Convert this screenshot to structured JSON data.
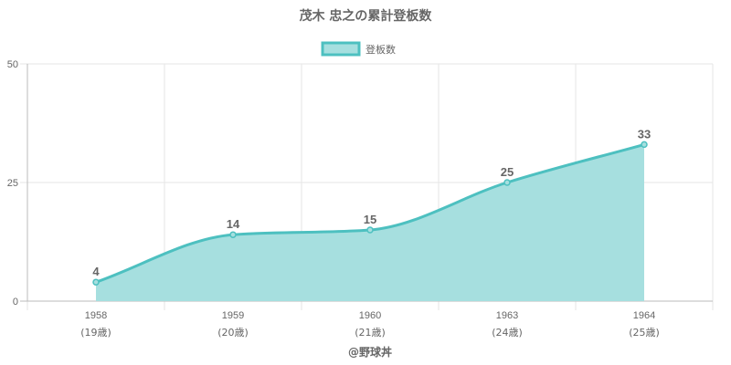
{
  "chart_data": {
    "type": "area",
    "title": "茂木 忠之の累計登板数",
    "categories": [
      "1958",
      "1959",
      "1960",
      "1963",
      "1964"
    ],
    "category_sublabels": [
      "(19歳)",
      "(20歳)",
      "(21歳)",
      "(24歳)",
      "(25歳)"
    ],
    "series": [
      {
        "name": "登板数",
        "values": [
          4,
          14,
          15,
          25,
          33
        ]
      }
    ],
    "ylim": [
      0,
      50
    ],
    "yticks": [
      0,
      25,
      50
    ],
    "grid": true,
    "legend_position": "top",
    "colors": {
      "line": "#4dc0c0",
      "fill": "#a6dfdf",
      "grid": "#e6e6e6",
      "axis": "#bbbbbb",
      "text": "#666666"
    }
  },
  "credit": "@野球丼"
}
